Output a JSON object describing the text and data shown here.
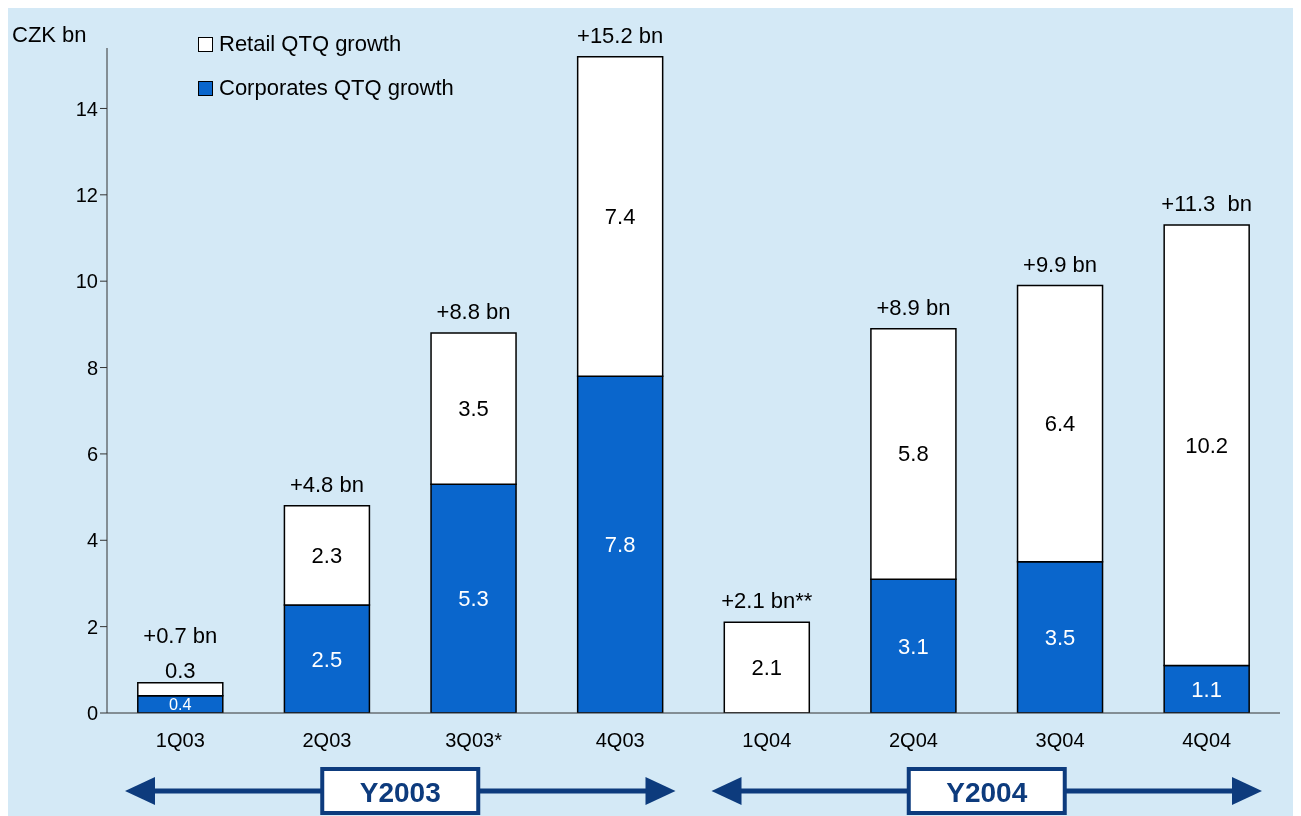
{
  "chart_data": {
    "type": "bar",
    "stacked": true,
    "ylabel": "CZK bn",
    "categories": [
      "1Q03",
      "2Q03",
      "3Q03*",
      "4Q03",
      "1Q04",
      "2Q04",
      "3Q04",
      "4Q04"
    ],
    "series": [
      {
        "name": "Corporates QTQ growth",
        "color": "#0a66cc",
        "values": [
          0.4,
          2.5,
          5.3,
          7.8,
          null,
          3.1,
          3.5,
          1.1
        ]
      },
      {
        "name": "Retail QTQ growth",
        "color": "#ffffff",
        "values": [
          0.3,
          2.3,
          3.5,
          7.4,
          2.1,
          5.8,
          6.4,
          10.2
        ]
      }
    ],
    "ylim": [
      0,
      15.4
    ],
    "yticks": [
      0,
      2,
      4,
      6,
      8,
      10,
      12,
      14
    ],
    "data_labels": true,
    "totals": [
      "+0.7 bn",
      "+4.8 bn",
      "+8.8 bn",
      "+15.2 bn",
      "+2.1 bn**",
      "+8.9 bn",
      "+9.9 bn",
      "+11.3  bn"
    ],
    "legend": "top left",
    "annotations": [
      "Y2003",
      "Y2004"
    ]
  }
}
